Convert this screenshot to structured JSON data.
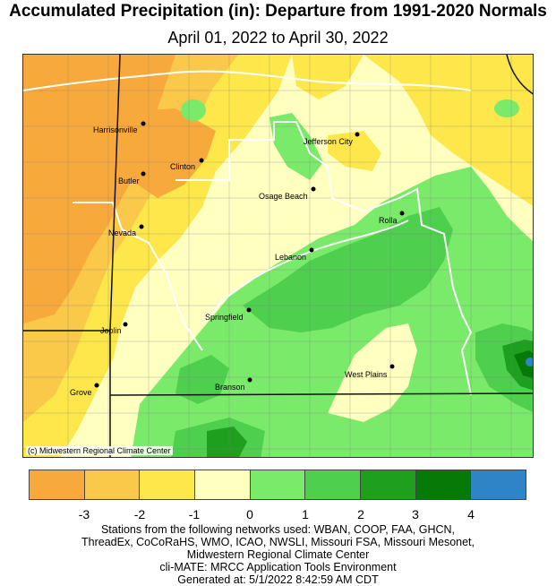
{
  "title": "Accumulated Precipitation (in): Departure from 1991-2020 Normals",
  "subtitle": "April 01, 2022 to April 30, 2022",
  "copyright": "(c) Midwestern Regional Climate Center",
  "legend": {
    "colors": [
      "#f8a93c",
      "#fbc94a",
      "#fde74a",
      "#ffffc0",
      "#7aea6a",
      "#4ecf4e",
      "#1ea01e",
      "#067a06",
      "#2f84c8"
    ],
    "ticks": [
      "-3",
      "-2",
      "-1",
      "0",
      "1",
      "2",
      "3",
      "4"
    ]
  },
  "cities": [
    {
      "name": "Harrisonville"
    },
    {
      "name": "Clinton"
    },
    {
      "name": "Butler"
    },
    {
      "name": "Jefferson City"
    },
    {
      "name": "Osage Beach"
    },
    {
      "name": "Rolla"
    },
    {
      "name": "Nevada"
    },
    {
      "name": "Lebanon"
    },
    {
      "name": "Springfield"
    },
    {
      "name": "Joplin"
    },
    {
      "name": "West Plains"
    },
    {
      "name": "Branson"
    },
    {
      "name": "Grove"
    }
  ],
  "footer": [
    "Stations from the following networks used: WBAN, COOP, FAA, GHCN,",
    "ThreadEx, CoCoRaHS, WMO, ICAO, NWSLI, Missouri FSA, Missouri Mesonet,",
    "Midwestern Regional Climate Center",
    "cli-MATE: MRCC Application Tools Environment",
    "Generated at: 5/1/2022 8:42:59 AM CDT"
  ]
}
